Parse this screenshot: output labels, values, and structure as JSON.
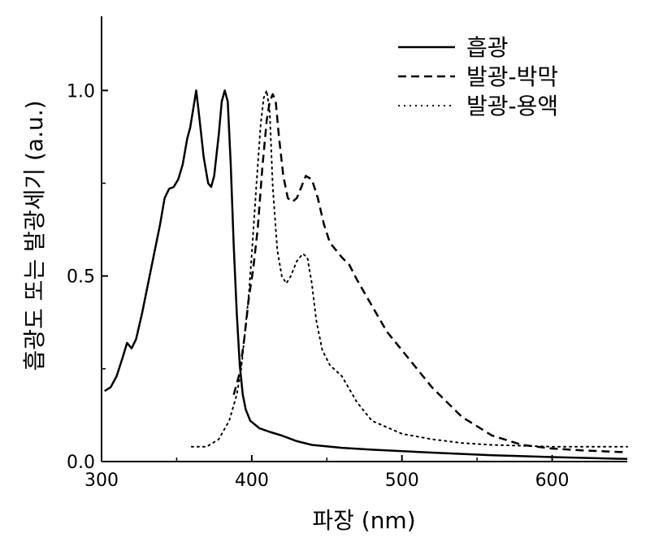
{
  "chart_data": {
    "type": "line",
    "xlabel": "파장 (nm)",
    "ylabel": "흡광도 또는 발광세기 (a.u.)",
    "xlim": [
      300,
      650
    ],
    "ylim": [
      0,
      1.2
    ],
    "xticks": [
      "300",
      "400",
      "500",
      "600"
    ],
    "yticks": [
      "0.0",
      "0.5",
      "1.0"
    ],
    "legend_position": "top-right",
    "grid": false,
    "series": [
      {
        "name": "흡광",
        "style": "solid",
        "points": [
          [
            302,
            0.19
          ],
          [
            306,
            0.2
          ],
          [
            310,
            0.23
          ],
          [
            314,
            0.28
          ],
          [
            317,
            0.32
          ],
          [
            320,
            0.305
          ],
          [
            323,
            0.33
          ],
          [
            327,
            0.4
          ],
          [
            331,
            0.48
          ],
          [
            335,
            0.56
          ],
          [
            339,
            0.64
          ],
          [
            342,
            0.71
          ],
          [
            345,
            0.735
          ],
          [
            348,
            0.74
          ],
          [
            351,
            0.76
          ],
          [
            354,
            0.8
          ],
          [
            357,
            0.87
          ],
          [
            359,
            0.9
          ],
          [
            361,
            0.95
          ],
          [
            363,
            1.0
          ],
          [
            365,
            0.93
          ],
          [
            368,
            0.82
          ],
          [
            371,
            0.75
          ],
          [
            373,
            0.74
          ],
          [
            375,
            0.77
          ],
          [
            378,
            0.88
          ],
          [
            380,
            0.97
          ],
          [
            382,
            1.0
          ],
          [
            384,
            0.97
          ],
          [
            386,
            0.8
          ],
          [
            388,
            0.58
          ],
          [
            390,
            0.4
          ],
          [
            392,
            0.26
          ],
          [
            394,
            0.18
          ],
          [
            396,
            0.14
          ],
          [
            399,
            0.11
          ],
          [
            405,
            0.09
          ],
          [
            412,
            0.08
          ],
          [
            420,
            0.07
          ],
          [
            430,
            0.055
          ],
          [
            440,
            0.045
          ],
          [
            460,
            0.037
          ],
          [
            480,
            0.032
          ],
          [
            520,
            0.024
          ],
          [
            560,
            0.017
          ],
          [
            600,
            0.012
          ],
          [
            650,
            0.007
          ]
        ]
      },
      {
        "name": "발광-박막",
        "style": "dashed",
        "points": [
          [
            388,
            0.18
          ],
          [
            392,
            0.24
          ],
          [
            395,
            0.33
          ],
          [
            398,
            0.44
          ],
          [
            401,
            0.52
          ],
          [
            404,
            0.63
          ],
          [
            407,
            0.79
          ],
          [
            410,
            0.92
          ],
          [
            412,
            0.97
          ],
          [
            414,
            0.99
          ],
          [
            416,
            0.97
          ],
          [
            418,
            0.88
          ],
          [
            421,
            0.77
          ],
          [
            424,
            0.71
          ],
          [
            427,
            0.7
          ],
          [
            430,
            0.71
          ],
          [
            433,
            0.74
          ],
          [
            436,
            0.77
          ],
          [
            440,
            0.76
          ],
          [
            444,
            0.71
          ],
          [
            448,
            0.64
          ],
          [
            452,
            0.59
          ],
          [
            456,
            0.57
          ],
          [
            460,
            0.55
          ],
          [
            465,
            0.53
          ],
          [
            470,
            0.49
          ],
          [
            480,
            0.42
          ],
          [
            490,
            0.35
          ],
          [
            500,
            0.3
          ],
          [
            520,
            0.2
          ],
          [
            540,
            0.12
          ],
          [
            560,
            0.07
          ],
          [
            580,
            0.045
          ],
          [
            600,
            0.035
          ],
          [
            620,
            0.03
          ],
          [
            650,
            0.025
          ]
        ]
      },
      {
        "name": "발광-용액",
        "style": "dotted",
        "points": [
          [
            360,
            0.04
          ],
          [
            370,
            0.04
          ],
          [
            378,
            0.06
          ],
          [
            385,
            0.11
          ],
          [
            390,
            0.18
          ],
          [
            393,
            0.25
          ],
          [
            396,
            0.37
          ],
          [
            398,
            0.45
          ],
          [
            400,
            0.56
          ],
          [
            403,
            0.74
          ],
          [
            406,
            0.91
          ],
          [
            408,
            0.98
          ],
          [
            410,
            1.0
          ],
          [
            412,
            0.94
          ],
          [
            414,
            0.74
          ],
          [
            417,
            0.57
          ],
          [
            420,
            0.5
          ],
          [
            423,
            0.48
          ],
          [
            426,
            0.5
          ],
          [
            430,
            0.54
          ],
          [
            434,
            0.56
          ],
          [
            437,
            0.55
          ],
          [
            440,
            0.48
          ],
          [
            443,
            0.38
          ],
          [
            447,
            0.3
          ],
          [
            452,
            0.26
          ],
          [
            460,
            0.23
          ],
          [
            470,
            0.16
          ],
          [
            480,
            0.11
          ],
          [
            500,
            0.075
          ],
          [
            520,
            0.06
          ],
          [
            540,
            0.05
          ],
          [
            560,
            0.045
          ],
          [
            600,
            0.04
          ],
          [
            650,
            0.04
          ]
        ]
      }
    ]
  }
}
